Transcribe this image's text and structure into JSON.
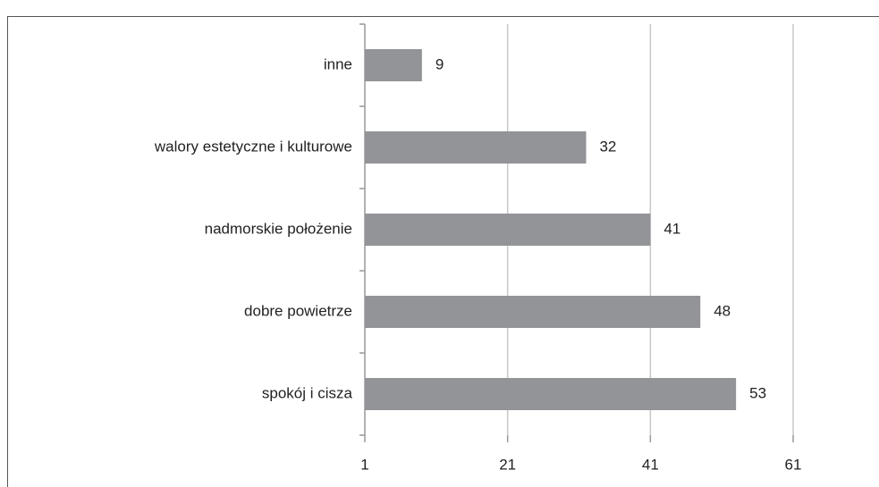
{
  "chart_data": {
    "type": "hbar",
    "categories": [
      "inne",
      "walory estetyczne i kulturowe",
      "nadmorskie położenie",
      "dobre powietrze",
      "spokój i cisza"
    ],
    "values": [
      9,
      32,
      41,
      48,
      53
    ],
    "color": "#939497",
    "xlim": [
      1,
      61
    ],
    "xticks": [
      1,
      21,
      41,
      61
    ],
    "grid": true
  }
}
